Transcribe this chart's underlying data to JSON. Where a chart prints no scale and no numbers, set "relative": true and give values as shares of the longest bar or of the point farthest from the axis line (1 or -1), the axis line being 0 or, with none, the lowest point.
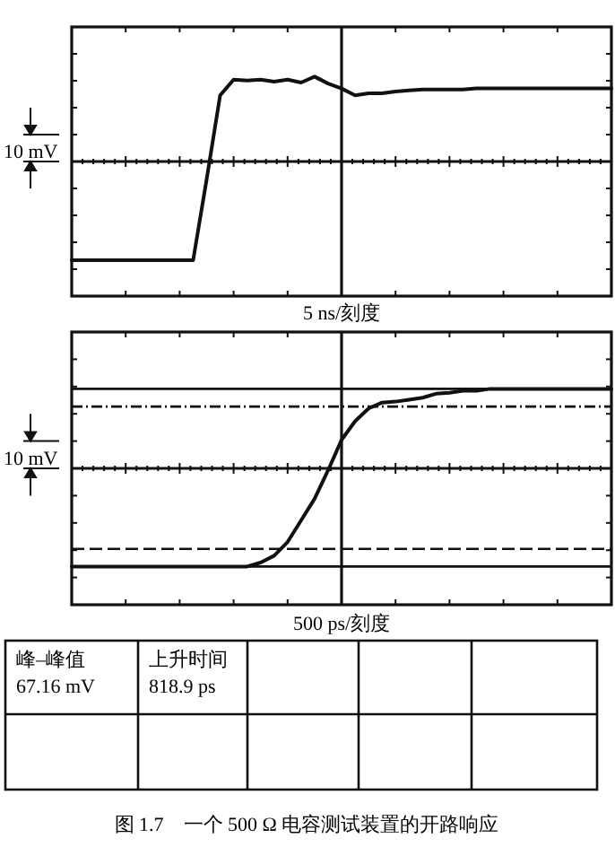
{
  "chart_data": [
    {
      "type": "line",
      "relative": true,
      "grid": true,
      "xlabel": "5 ns/刻度",
      "ylabel": "10 mV",
      "categories": [
        null,
        null,
        null,
        null,
        null,
        null,
        null,
        null,
        null,
        null,
        null,
        null,
        null,
        null,
        null,
        null,
        null,
        null,
        null,
        null,
        null,
        null,
        null,
        null,
        null,
        null,
        null,
        null,
        null,
        null,
        null,
        null,
        null,
        null,
        null,
        null,
        null,
        null,
        null,
        null,
        null
      ],
      "series": [
        {
          "color": "#111111",
          "values": [
            -1,
            -1,
            -1,
            -1,
            -1,
            -1,
            -1,
            -1,
            -1,
            -1,
            -0.18,
            0.67,
            0.83,
            0.82,
            0.83,
            0.81,
            0.83,
            0.8,
            0.86,
            0.79,
            0.74,
            0.67,
            0.69,
            0.69,
            0.71,
            0.72,
            0.73,
            0.73,
            0.73,
            0.73,
            0.74,
            0.74,
            0.74,
            0.74,
            0.74,
            0.74,
            0.74,
            0.74,
            0.74,
            0.74,
            0.74
          ]
        }
      ]
    },
    {
      "type": "line",
      "relative": true,
      "grid": true,
      "xlabel": "500 ps/刻度",
      "ylabel": "10 mV",
      "categories": [
        null,
        null,
        null,
        null,
        null,
        null,
        null,
        null,
        null,
        null,
        null,
        null,
        null,
        null,
        null,
        null,
        null,
        null,
        null,
        null,
        null,
        null,
        null,
        null,
        null,
        null,
        null,
        null,
        null,
        null,
        null,
        null,
        null,
        null,
        null,
        null,
        null,
        null,
        null,
        null,
        null
      ],
      "series": [
        {
          "color": "#111111",
          "values": [
            -1,
            -1,
            -1,
            -1,
            -1,
            -1,
            -1,
            -1,
            -1,
            -1,
            -1,
            -1,
            -1,
            -1,
            -0.96,
            -0.89,
            -0.75,
            -0.53,
            -0.31,
            -0.02,
            0.29,
            0.48,
            0.61,
            0.67,
            0.68,
            0.7,
            0.72,
            0.76,
            0.77,
            0.79,
            0.79,
            0.81,
            0.81,
            0.81,
            0.81,
            0.81,
            0.81,
            0.81,
            0.81,
            0.81,
            0.81
          ]
        }
      ],
      "ref_lines": [
        {
          "axis": "y",
          "value": 0.81,
          "line_style": "solid"
        },
        {
          "axis": "y",
          "value": 0.63,
          "line_style": "dotted"
        },
        {
          "axis": "y",
          "value": -0.82,
          "line_style": "dashed"
        },
        {
          "axis": "y",
          "value": -1,
          "line_style": "solid"
        }
      ],
      "annotations": [
        "峰–峰值",
        "67.16 mV",
        "上升时间",
        "818.9 ps",
        "图 1.7　一个 500 Ω 电容测试装置的开路响应"
      ]
    }
  ]
}
